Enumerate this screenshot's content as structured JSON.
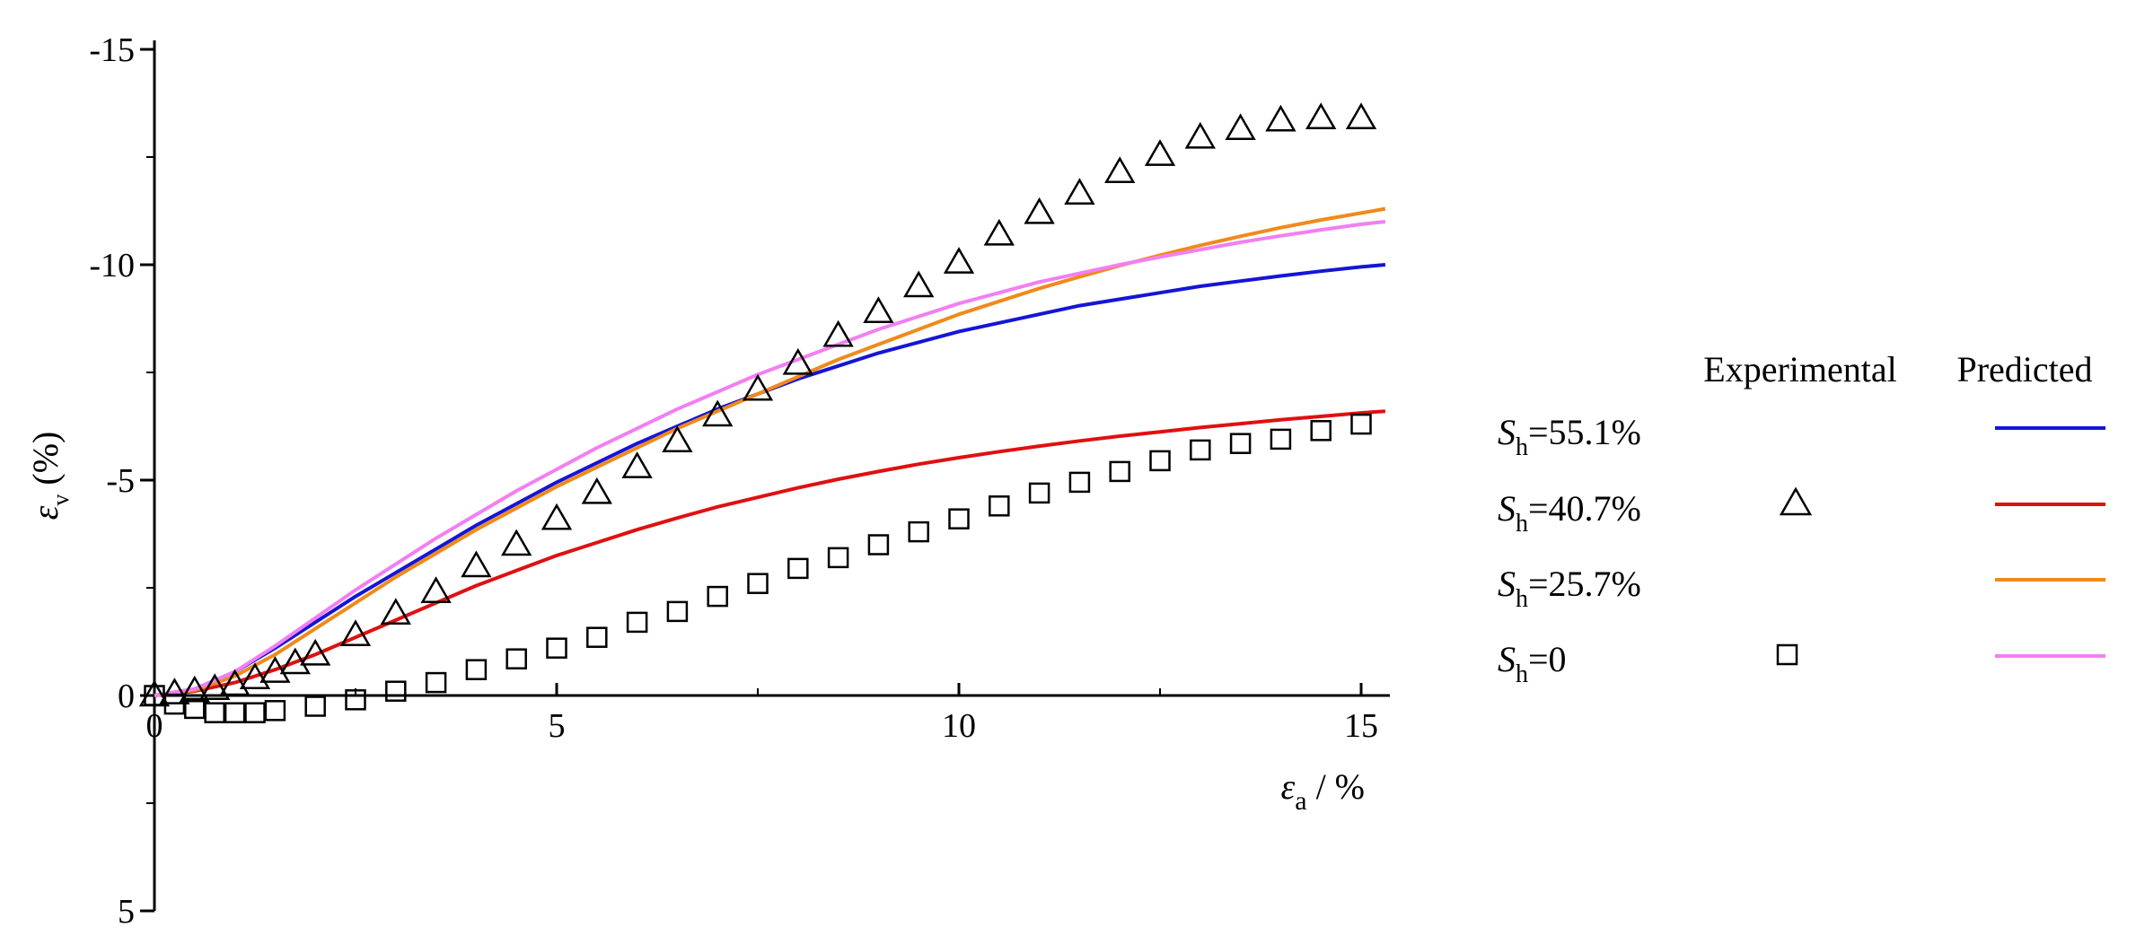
{
  "chart_data": {
    "type": "line",
    "xlabel": {
      "symbol": "ε",
      "sub": "a",
      "rest": " / %"
    },
    "ylabel": {
      "symbol": "ε",
      "sub": "v",
      "rest": " (%)"
    },
    "xlim": [
      0,
      15.3
    ],
    "ylim": [
      5,
      -15
    ],
    "y_inverted": true,
    "x_ticks": [
      0,
      5,
      10,
      15
    ],
    "y_ticks": [
      -15,
      -10,
      -5,
      0,
      5
    ],
    "x_tick_labels": [
      "0",
      "5",
      "10",
      "15"
    ],
    "y_tick_labels": [
      "-15",
      "-10",
      "-5",
      "0",
      "5"
    ],
    "grid": false,
    "legend": {
      "placement": "right",
      "header_experimental": "Experimental",
      "header_predicted": "Predicted",
      "rows": [
        {
          "label_symbol": "S",
          "label_sub": "h",
          "label_rest": "=55.1%",
          "marker": "",
          "line_color": "#1515d6"
        },
        {
          "label_symbol": "S",
          "label_sub": "h",
          "label_rest": "=40.7%",
          "marker": "triangle",
          "line_color": "#e01010"
        },
        {
          "label_symbol": "S",
          "label_sub": "h",
          "label_rest": "=25.7%",
          "marker": "",
          "line_color": "#f08a1a"
        },
        {
          "label_symbol": "S",
          "label_sub": "h",
          "label_rest": "=0",
          "marker": "square",
          "line_color": "#f27ff2"
        }
      ]
    },
    "predicted_series": [
      {
        "name": "Sh=55.1%",
        "color": "#1515d6",
        "x": [
          0,
          0.5,
          1,
          1.5,
          2,
          2.5,
          3,
          3.5,
          4,
          4.5,
          5,
          5.5,
          6,
          6.5,
          7,
          7.5,
          8,
          8.5,
          9,
          9.5,
          10,
          10.5,
          11,
          11.5,
          12,
          12.5,
          13,
          13.5,
          14,
          14.5,
          15,
          15.3
        ],
        "y": [
          0,
          -0.15,
          -0.55,
          -1.1,
          -1.7,
          -2.3,
          -2.85,
          -3.4,
          -3.95,
          -4.45,
          -4.95,
          -5.4,
          -5.85,
          -6.25,
          -6.65,
          -7.0,
          -7.35,
          -7.65,
          -7.95,
          -8.2,
          -8.45,
          -8.65,
          -8.85,
          -9.05,
          -9.2,
          -9.35,
          -9.5,
          -9.62,
          -9.74,
          -9.85,
          -9.95,
          -10.0
        ]
      },
      {
        "name": "Sh=40.7%",
        "color": "#e01010",
        "x": [
          0,
          0.5,
          1,
          1.5,
          2,
          2.5,
          3,
          3.5,
          4,
          4.5,
          5,
          5.5,
          6,
          6.5,
          7,
          7.5,
          8,
          8.5,
          9,
          9.5,
          10,
          10.5,
          11,
          11.5,
          12,
          12.5,
          13,
          13.5,
          14,
          14.5,
          15,
          15.3
        ],
        "y": [
          0,
          -0.1,
          -0.3,
          -0.6,
          -0.95,
          -1.35,
          -1.75,
          -2.15,
          -2.55,
          -2.9,
          -3.25,
          -3.55,
          -3.85,
          -4.12,
          -4.38,
          -4.6,
          -4.82,
          -5.02,
          -5.2,
          -5.37,
          -5.52,
          -5.66,
          -5.79,
          -5.91,
          -6.02,
          -6.12,
          -6.22,
          -6.31,
          -6.4,
          -6.48,
          -6.56,
          -6.6
        ]
      },
      {
        "name": "Sh=25.7%",
        "color": "#f08a1a",
        "x": [
          0,
          0.5,
          1,
          1.5,
          2,
          2.5,
          3,
          3.5,
          4,
          4.5,
          5,
          5.5,
          6,
          6.5,
          7,
          7.5,
          8,
          8.5,
          9,
          9.5,
          10,
          10.5,
          11,
          11.5,
          12,
          12.5,
          13,
          13.5,
          14,
          14.5,
          15,
          15.3
        ],
        "y": [
          0,
          -0.12,
          -0.45,
          -0.95,
          -1.55,
          -2.15,
          -2.75,
          -3.3,
          -3.85,
          -4.35,
          -4.85,
          -5.3,
          -5.75,
          -6.2,
          -6.6,
          -7.0,
          -7.4,
          -7.8,
          -8.15,
          -8.5,
          -8.85,
          -9.15,
          -9.45,
          -9.72,
          -9.98,
          -10.22,
          -10.45,
          -10.66,
          -10.86,
          -11.04,
          -11.2,
          -11.3
        ]
      },
      {
        "name": "Sh=0",
        "color": "#f27ff2",
        "x": [
          0,
          0.5,
          1,
          1.5,
          2,
          2.5,
          3,
          3.5,
          4,
          4.5,
          5,
          5.5,
          6,
          6.5,
          7,
          7.5,
          8,
          8.5,
          9,
          9.5,
          10,
          10.5,
          11,
          11.5,
          12,
          12.5,
          13,
          13.5,
          14,
          14.5,
          15,
          15.3
        ],
        "y": [
          0,
          -0.15,
          -0.55,
          -1.15,
          -1.8,
          -2.45,
          -3.05,
          -3.65,
          -4.2,
          -4.75,
          -5.25,
          -5.75,
          -6.2,
          -6.65,
          -7.05,
          -7.45,
          -7.8,
          -8.15,
          -8.5,
          -8.8,
          -9.1,
          -9.35,
          -9.6,
          -9.8,
          -10.0,
          -10.18,
          -10.35,
          -10.52,
          -10.67,
          -10.81,
          -10.94,
          -11.0
        ]
      }
    ],
    "experimental_series": [
      {
        "name": "Sh=40.7% experimental",
        "marker": "triangle",
        "x": [
          0,
          0.25,
          0.5,
          0.75,
          1,
          1.25,
          1.5,
          1.75,
          2,
          2.5,
          3,
          3.5,
          4,
          4.5,
          5,
          5.5,
          6,
          6.5,
          7,
          7.5,
          8,
          8.5,
          9,
          9.5,
          10,
          10.5,
          11,
          11.5,
          12,
          12.5,
          13,
          13.5,
          14,
          14.5,
          15
        ],
        "y": [
          0,
          -0.05,
          -0.1,
          -0.15,
          -0.25,
          -0.4,
          -0.55,
          -0.75,
          -0.95,
          -1.4,
          -1.9,
          -2.4,
          -3.0,
          -3.5,
          -4.1,
          -4.7,
          -5.3,
          -5.9,
          -6.5,
          -7.1,
          -7.7,
          -8.35,
          -8.9,
          -9.5,
          -10.05,
          -10.7,
          -11.2,
          -11.65,
          -12.15,
          -12.55,
          -12.95,
          -13.15,
          -13.35,
          -13.4,
          -13.4
        ]
      },
      {
        "name": "Sh=0 experimental",
        "marker": "square",
        "x": [
          0,
          0.25,
          0.5,
          0.75,
          1,
          1.25,
          1.5,
          2,
          2.5,
          3,
          3.5,
          4,
          4.5,
          5,
          5.5,
          6,
          6.5,
          7,
          7.5,
          8,
          8.5,
          9,
          9.5,
          10,
          10.5,
          11,
          11.5,
          12,
          12.5,
          13,
          13.5,
          14,
          14.5,
          15
        ],
        "y": [
          0,
          0.2,
          0.3,
          0.4,
          0.4,
          0.4,
          0.35,
          0.25,
          0.1,
          -0.1,
          -0.3,
          -0.6,
          -0.85,
          -1.1,
          -1.35,
          -1.7,
          -1.95,
          -2.3,
          -2.6,
          -2.95,
          -3.2,
          -3.5,
          -3.8,
          -4.1,
          -4.4,
          -4.7,
          -4.95,
          -5.2,
          -5.45,
          -5.7,
          -5.85,
          -5.95,
          -6.15,
          -6.3
        ]
      }
    ]
  }
}
